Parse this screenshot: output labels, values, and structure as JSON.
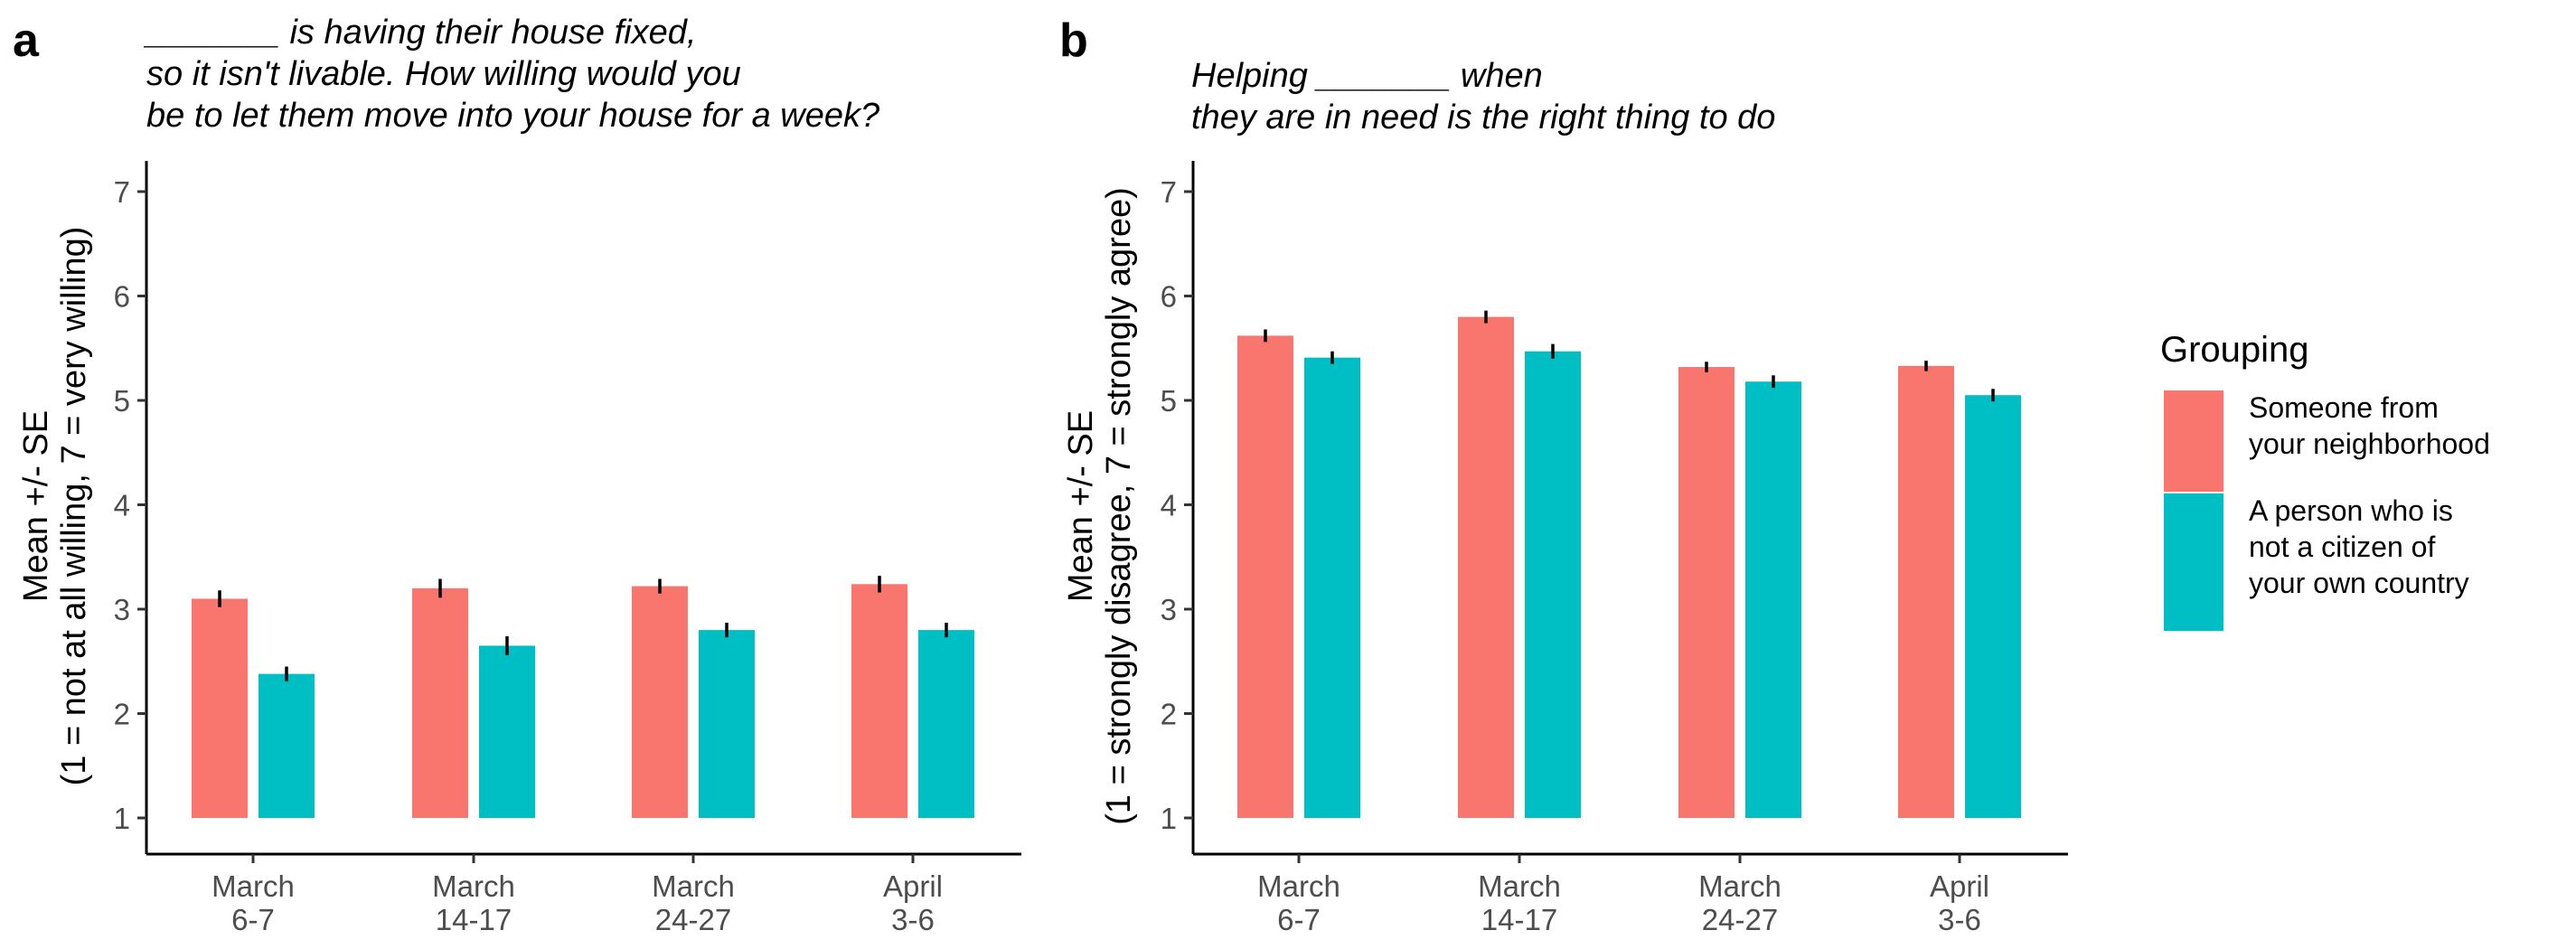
{
  "panels": [
    {
      "letter": "a",
      "title_lines": [
        "_______ is having their house fixed,",
        "so it isn't livable. How willing would you",
        "be to let them move into your house for a week?"
      ],
      "ylabel_lines": [
        "Mean +/- SE",
        "(1 = not at all willing, 7 = very willing)"
      ]
    },
    {
      "letter": "b",
      "title_lines": [
        "Helping _______ when",
        "they are in need is the right thing to do"
      ],
      "ylabel_lines": [
        "Mean +/- SE",
        "(1 = strongly disagree, 7 = strongly agree)"
      ]
    }
  ],
  "legend": {
    "title": "Grouping",
    "items": [
      {
        "lines": [
          "Someone from",
          "your neighborhood"
        ],
        "color": "#F8766D"
      },
      {
        "lines": [
          "A person who is",
          "not a citizen of",
          "your own country"
        ],
        "color": "#00BFC4"
      }
    ]
  },
  "chart_data": [
    {
      "type": "bar",
      "categories": [
        [
          "March",
          "6-7"
        ],
        [
          "March",
          "14-17"
        ],
        [
          "March",
          "24-27"
        ],
        [
          "April",
          "3-6"
        ]
      ],
      "ylim": [
        0.7,
        7.3
      ],
      "yticks": [
        1,
        2,
        3,
        4,
        5,
        6,
        7
      ],
      "baseline": 1,
      "series": [
        {
          "name": "Someone from your neighborhood",
          "color": "#F8766D",
          "values": [
            3.1,
            3.2,
            3.22,
            3.24
          ],
          "se": [
            0.08,
            0.09,
            0.07,
            0.08
          ]
        },
        {
          "name": "A person who is not a citizen of your own country",
          "color": "#00BFC4",
          "values": [
            2.38,
            2.65,
            2.8,
            2.8
          ],
          "se": [
            0.07,
            0.09,
            0.07,
            0.07
          ]
        }
      ]
    },
    {
      "type": "bar",
      "categories": [
        [
          "March",
          "6-7"
        ],
        [
          "March",
          "14-17"
        ],
        [
          "March",
          "24-27"
        ],
        [
          "April",
          "3-6"
        ]
      ],
      "ylim": [
        0.7,
        7.3
      ],
      "yticks": [
        1,
        2,
        3,
        4,
        5,
        6,
        7
      ],
      "baseline": 1,
      "series": [
        {
          "name": "Someone from your neighborhood",
          "color": "#F8766D",
          "values": [
            5.62,
            5.8,
            5.32,
            5.33
          ],
          "se": [
            0.06,
            0.06,
            0.05,
            0.05
          ]
        },
        {
          "name": "A person who is not a citizen of your own country",
          "color": "#00BFC4",
          "values": [
            5.41,
            5.47,
            5.18,
            5.05
          ],
          "se": [
            0.06,
            0.07,
            0.06,
            0.06
          ]
        }
      ]
    }
  ]
}
